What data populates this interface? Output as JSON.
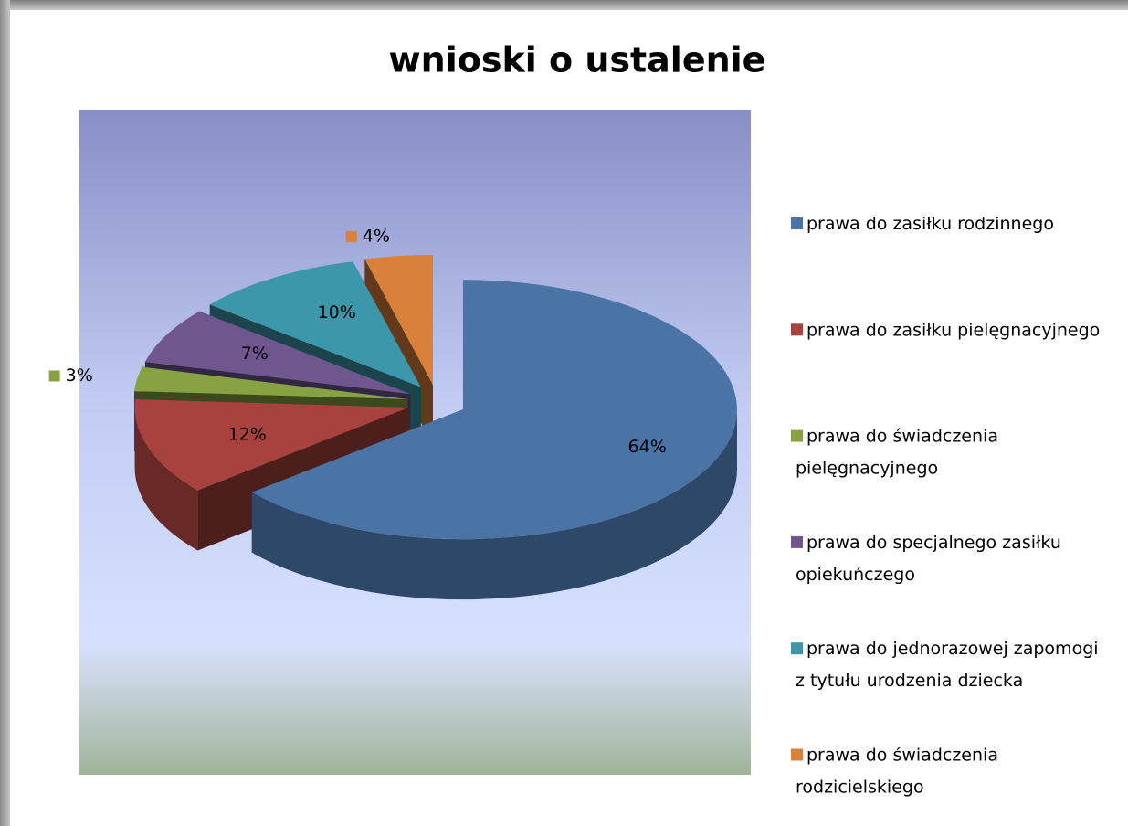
{
  "chart_data": {
    "type": "pie3d",
    "title": "wnioski o ustalenie",
    "categories": [
      "prawa do zasiłku rodzinnego",
      "prawa do zasiłku pielęgnacyjnego",
      "prawa do świadczenia pielęgnacyjnego",
      "prawa do specjalnego zasiłku opiekuńczego",
      "prawa do jednorazowej zapomogi z tytułu urodzenia dziecka",
      "prawa do świadczenia rodzicielskiego"
    ],
    "values": [
      64,
      12,
      3,
      7,
      10,
      4
    ],
    "value_labels": [
      "64%",
      "12%",
      "3%",
      "7%",
      "10%",
      "4%"
    ],
    "colors": [
      "#4a74a6",
      "#a8423f",
      "#86a243",
      "#6f568f",
      "#3c97aa",
      "#d9813a"
    ],
    "legend": "right"
  }
}
